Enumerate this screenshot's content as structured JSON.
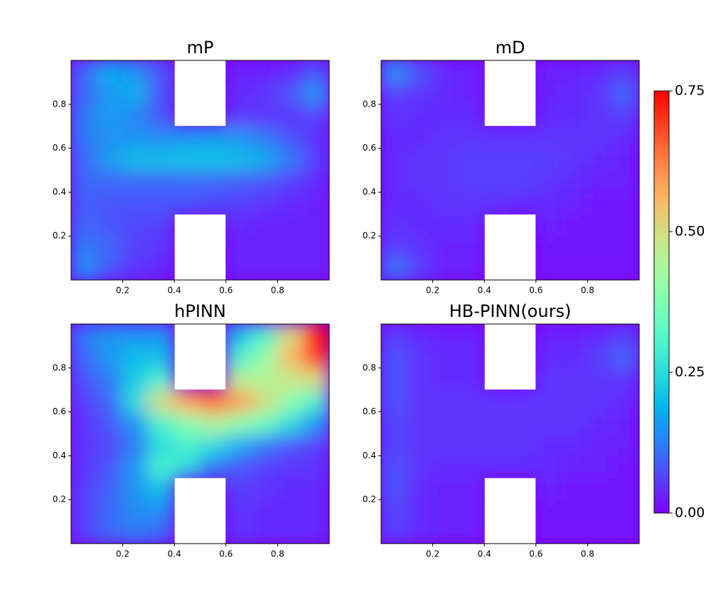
{
  "chart_data": {
    "type": "heatmap",
    "colormap": "rainbow",
    "xlim": [
      0,
      1
    ],
    "ylim": [
      0,
      1
    ],
    "xticks": [
      0.2,
      0.4,
      0.6,
      0.8
    ],
    "yticks": [
      0.2,
      0.4,
      0.6,
      0.8
    ],
    "x": [
      0.05,
      0.15,
      0.25,
      0.35,
      0.45,
      0.55,
      0.65,
      0.75,
      0.85,
      0.95
    ],
    "y": [
      0.05,
      0.15,
      0.25,
      0.35,
      0.45,
      0.55,
      0.65,
      0.75,
      0.85,
      0.95
    ],
    "clim": [
      0,
      0.75
    ],
    "cticks": [
      {
        "value": 0,
        "label": "0.00"
      },
      {
        "value": 0.25,
        "label": "0.25"
      },
      {
        "value": 0.5,
        "label": "0.50"
      },
      {
        "value": 0.75,
        "label": "0.75"
      }
    ],
    "panels": [
      {
        "title": "mP",
        "z": [
          [
            0.15,
            0.08,
            0.05,
            0.04,
            null,
            null,
            0.03,
            0.03,
            0.03,
            0.03
          ],
          [
            0.12,
            0.1,
            0.06,
            0.05,
            null,
            null,
            0.03,
            0.03,
            0.03,
            0.03
          ],
          [
            0.1,
            0.08,
            0.07,
            0.06,
            null,
            null,
            0.04,
            0.03,
            0.03,
            0.03
          ],
          [
            0.09,
            0.08,
            0.08,
            0.08,
            0.08,
            0.07,
            0.06,
            0.05,
            0.04,
            0.03
          ],
          [
            0.1,
            0.1,
            0.1,
            0.1,
            0.1,
            0.1,
            0.09,
            0.08,
            0.06,
            0.04
          ],
          [
            0.1,
            0.16,
            0.2,
            0.2,
            0.21,
            0.21,
            0.2,
            0.18,
            0.12,
            0.06
          ],
          [
            0.12,
            0.14,
            0.15,
            0.14,
            0.15,
            0.16,
            0.15,
            0.12,
            0.08,
            0.05
          ],
          [
            0.12,
            0.16,
            0.13,
            0.08,
            null,
            null,
            0.05,
            0.05,
            0.05,
            0.06
          ],
          [
            0.1,
            0.15,
            0.18,
            0.08,
            null,
            null,
            0.04,
            0.05,
            0.08,
            0.15
          ],
          [
            0.1,
            0.18,
            0.15,
            0.08,
            null,
            null,
            0.03,
            0.03,
            0.04,
            0.08
          ]
        ]
      },
      {
        "title": "mD",
        "z": [
          [
            0.12,
            0.06,
            0.03,
            0.03,
            null,
            null,
            0.02,
            0.02,
            0.02,
            0.02
          ],
          [
            0.06,
            0.05,
            0.03,
            0.03,
            null,
            null,
            0.02,
            0.02,
            0.02,
            0.02
          ],
          [
            0.05,
            0.04,
            0.04,
            0.04,
            null,
            null,
            0.03,
            0.02,
            0.02,
            0.02
          ],
          [
            0.04,
            0.04,
            0.05,
            0.05,
            0.05,
            0.04,
            0.04,
            0.03,
            0.02,
            0.02
          ],
          [
            0.04,
            0.05,
            0.05,
            0.06,
            0.06,
            0.06,
            0.05,
            0.04,
            0.03,
            0.03
          ],
          [
            0.04,
            0.05,
            0.05,
            0.06,
            0.06,
            0.06,
            0.06,
            0.05,
            0.04,
            0.03
          ],
          [
            0.04,
            0.04,
            0.05,
            0.05,
            0.05,
            0.05,
            0.05,
            0.05,
            0.05,
            0.04
          ],
          [
            0.05,
            0.04,
            0.04,
            0.04,
            null,
            null,
            0.04,
            0.04,
            0.05,
            0.06
          ],
          [
            0.06,
            0.05,
            0.04,
            0.03,
            null,
            null,
            0.03,
            0.04,
            0.05,
            0.1
          ],
          [
            0.15,
            0.08,
            0.04,
            0.03,
            null,
            null,
            0.03,
            0.03,
            0.04,
            0.06
          ]
        ]
      },
      {
        "title": "hPINN",
        "z": [
          [
            0.06,
            0.1,
            0.12,
            0.1,
            null,
            null,
            0.05,
            0.04,
            0.04,
            0.04
          ],
          [
            0.06,
            0.1,
            0.14,
            0.14,
            null,
            null,
            0.05,
            0.04,
            0.04,
            0.04
          ],
          [
            0.06,
            0.09,
            0.15,
            0.2,
            null,
            null,
            0.06,
            0.05,
            0.04,
            0.04
          ],
          [
            0.05,
            0.08,
            0.15,
            0.3,
            0.25,
            0.12,
            0.08,
            0.06,
            0.05,
            0.05
          ],
          [
            0.05,
            0.07,
            0.12,
            0.25,
            0.3,
            0.25,
            0.18,
            0.12,
            0.08,
            0.06
          ],
          [
            0.05,
            0.08,
            0.15,
            0.3,
            0.38,
            0.45,
            0.4,
            0.35,
            0.25,
            0.15
          ],
          [
            0.06,
            0.1,
            0.25,
            0.5,
            0.58,
            0.65,
            0.6,
            0.5,
            0.4,
            0.3
          ],
          [
            0.08,
            0.12,
            0.22,
            0.3,
            null,
            null,
            0.45,
            0.45,
            0.48,
            0.5
          ],
          [
            0.1,
            0.15,
            0.2,
            0.2,
            null,
            null,
            0.3,
            0.4,
            0.55,
            0.7
          ],
          [
            0.12,
            0.15,
            0.15,
            0.15,
            null,
            null,
            0.2,
            0.3,
            0.5,
            0.75
          ]
        ]
      },
      {
        "title": "HB-PINN(ours)",
        "z": [
          [
            0.06,
            0.04,
            0.03,
            0.03,
            null,
            null,
            0.02,
            0.02,
            0.02,
            0.02
          ],
          [
            0.07,
            0.04,
            0.03,
            0.03,
            null,
            null,
            0.02,
            0.02,
            0.02,
            0.02
          ],
          [
            0.08,
            0.04,
            0.03,
            0.03,
            null,
            null,
            0.03,
            0.02,
            0.02,
            0.02
          ],
          [
            0.08,
            0.05,
            0.04,
            0.04,
            0.04,
            0.04,
            0.04,
            0.03,
            0.03,
            0.02
          ],
          [
            0.07,
            0.05,
            0.05,
            0.05,
            0.05,
            0.05,
            0.04,
            0.04,
            0.03,
            0.03
          ],
          [
            0.07,
            0.05,
            0.05,
            0.05,
            0.05,
            0.05,
            0.05,
            0.05,
            0.04,
            0.03
          ],
          [
            0.08,
            0.05,
            0.05,
            0.05,
            0.05,
            0.05,
            0.05,
            0.05,
            0.05,
            0.04
          ],
          [
            0.08,
            0.05,
            0.04,
            0.04,
            null,
            null,
            0.05,
            0.05,
            0.05,
            0.05
          ],
          [
            0.08,
            0.05,
            0.04,
            0.04,
            null,
            null,
            0.04,
            0.04,
            0.06,
            0.1
          ],
          [
            0.06,
            0.04,
            0.03,
            0.03,
            null,
            null,
            0.03,
            0.03,
            0.04,
            0.06
          ]
        ]
      }
    ]
  }
}
